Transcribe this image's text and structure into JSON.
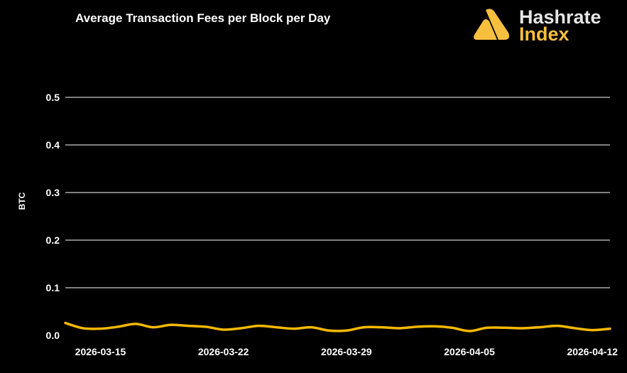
{
  "logo": {
    "line1": "Hashrate",
    "line2": "Index",
    "accent": "#f7bf3e"
  },
  "chart_data": {
    "type": "line",
    "title": "Average Transaction Fees per Block per Day",
    "xlabel": "",
    "ylabel": "BTC",
    "ylim": [
      0,
      0.5
    ],
    "yticks": [
      "0.0",
      "0.1",
      "0.2",
      "0.3",
      "0.4",
      "0.5"
    ],
    "xticks": [
      "2026-03-15",
      "2026-03-22",
      "2026-03-29",
      "2026-04-05",
      "2026-04-12"
    ],
    "xrange": [
      "2026-03-13",
      "2026-04-13"
    ],
    "grid": true,
    "line_color": "#f5b800",
    "series": [
      {
        "x_start": "2026-03-13",
        "interval": "1 day",
        "values": [
          0.026,
          0.015,
          0.014,
          0.018,
          0.024,
          0.017,
          0.022,
          0.02,
          0.018,
          0.012,
          0.015,
          0.02,
          0.017,
          0.014,
          0.017,
          0.01,
          0.01,
          0.017,
          0.017,
          0.015,
          0.018,
          0.019,
          0.016,
          0.009,
          0.016,
          0.016,
          0.015,
          0.017,
          0.02,
          0.015,
          0.011,
          0.014
        ]
      }
    ]
  }
}
